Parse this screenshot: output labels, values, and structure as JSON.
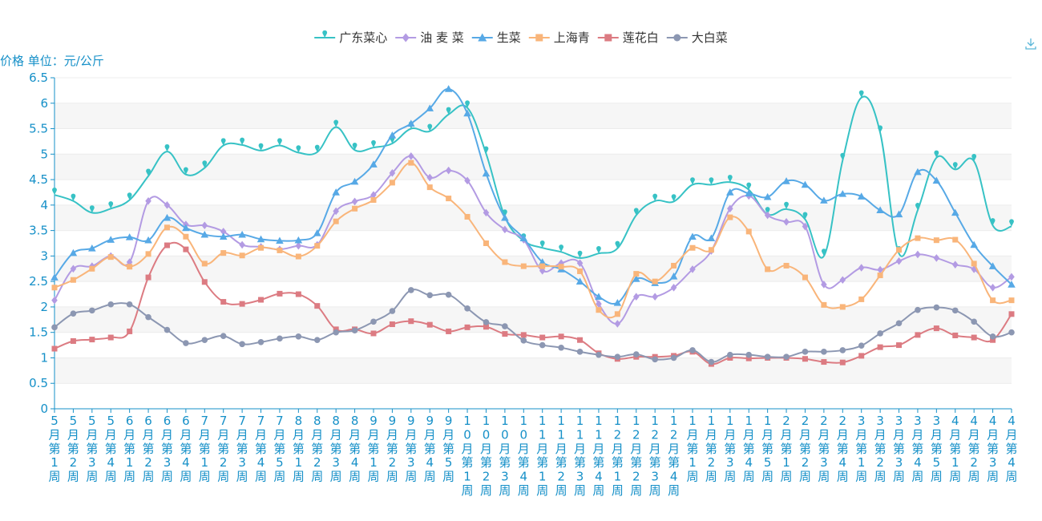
{
  "chart_data": {
    "type": "line",
    "ylabel": "价格 单位：元/公斤",
    "ylim": [
      0,
      6.5
    ],
    "yticks": [
      "0",
      "0.5",
      "1",
      "1.5",
      "2",
      "2.5",
      "3",
      "3.5",
      "4",
      "4.5",
      "5",
      "5.5",
      "6",
      "6.5"
    ],
    "grid": "horizontal bands",
    "legend_position": "top-center",
    "categories": [
      "5月第1周",
      "5月第2周",
      "5月第3周",
      "5月第4周",
      "6月第1周",
      "6月第2周",
      "6月第3周",
      "6月第4周",
      "7月第1周",
      "7月第2周",
      "7月第3周",
      "7月第4周",
      "7月第5周",
      "8月第1周",
      "8月第2周",
      "8月第3周",
      "8月第4周",
      "9月第1周",
      "9月第2周",
      "9月第3周",
      "9月第4周",
      "9月第5周",
      "10月第1周",
      "10月第2周",
      "10月第3周",
      "10月第4周",
      "11月第1周",
      "11月第2周",
      "11月第3周",
      "11月第4周",
      "12月第1周",
      "12月第2周",
      "12月第3周",
      "12月第4周",
      "1月第1周",
      "1月第2周",
      "1月第3周",
      "1月第4周",
      "1月第5周",
      "2月第1周",
      "2月第2周",
      "2月第3周",
      "2月第4周",
      "3月第1周",
      "3月第2周",
      "3月第3周",
      "3月第4周",
      "3月第5周",
      "4月第1周",
      "4月第2周",
      "4月第3周",
      "4月第4周"
    ],
    "series": [
      {
        "name": "广东菜心",
        "color": "#37c2c5",
        "symbol": "pin",
        "values": [
          4.2,
          4.08,
          3.85,
          3.93,
          4.1,
          4.57,
          5.05,
          4.6,
          4.73,
          5.17,
          5.18,
          5.07,
          5.17,
          5.03,
          5.04,
          5.53,
          5.08,
          5.13,
          5.21,
          5.5,
          5.45,
          5.78,
          5.91,
          5.01,
          3.77,
          3.3,
          3.16,
          3.08,
          2.96,
          3.05,
          3.15,
          3.8,
          4.08,
          4.07,
          4.4,
          4.4,
          4.45,
          4.3,
          3.82,
          3.92,
          3.72,
          3.0,
          4.88,
          6.11,
          5.42,
          3.05,
          3.9,
          4.93,
          4.7,
          4.86,
          3.6,
          3.58
        ]
      },
      {
        "name": "油 麦 菜",
        "color": "#b39be3",
        "symbol": "diamond",
        "values": [
          2.13,
          2.75,
          2.8,
          3.0,
          2.88,
          4.08,
          4.0,
          3.62,
          3.6,
          3.48,
          3.22,
          3.18,
          3.13,
          3.2,
          3.22,
          3.88,
          4.07,
          4.2,
          4.63,
          4.96,
          4.54,
          4.68,
          4.48,
          3.85,
          3.52,
          3.32,
          2.71,
          2.86,
          2.86,
          2.06,
          1.67,
          2.2,
          2.2,
          2.38,
          2.74,
          3.1,
          3.93,
          4.18,
          3.8,
          3.67,
          3.58,
          2.44,
          2.53,
          2.77,
          2.73,
          2.9,
          3.03,
          2.96,
          2.83,
          2.74,
          2.38,
          2.59
        ]
      },
      {
        "name": "生菜",
        "color": "#57a9e6",
        "symbol": "triangle",
        "values": [
          2.58,
          3.06,
          3.15,
          3.32,
          3.37,
          3.31,
          3.75,
          3.55,
          3.42,
          3.38,
          3.42,
          3.33,
          3.3,
          3.31,
          3.45,
          4.25,
          4.46,
          4.8,
          5.37,
          5.6,
          5.9,
          6.28,
          5.8,
          4.62,
          3.75,
          3.35,
          2.88,
          2.74,
          2.5,
          2.2,
          2.08,
          2.55,
          2.47,
          2.6,
          3.38,
          3.35,
          4.25,
          4.23,
          4.16,
          4.47,
          4.4,
          4.09,
          4.22,
          4.17,
          3.9,
          3.82,
          4.65,
          4.48,
          3.85,
          3.22,
          2.8,
          2.44
        ]
      },
      {
        "name": "上海青",
        "color": "#f9b57a",
        "symbol": "rect",
        "values": [
          2.38,
          2.53,
          2.75,
          2.98,
          2.79,
          3.04,
          3.56,
          3.38,
          2.85,
          3.06,
          3.01,
          3.16,
          3.11,
          2.99,
          3.2,
          3.68,
          3.93,
          4.1,
          4.44,
          4.83,
          4.35,
          4.13,
          3.77,
          3.25,
          2.88,
          2.8,
          2.8,
          2.79,
          2.7,
          1.94,
          1.86,
          2.65,
          2.5,
          2.81,
          3.16,
          3.12,
          3.76,
          3.48,
          2.74,
          2.81,
          2.58,
          2.04,
          2.0,
          2.15,
          2.62,
          3.12,
          3.35,
          3.31,
          3.32,
          2.85,
          2.13,
          2.13
        ]
      },
      {
        "name": "莲花白",
        "color": "#dc7b82",
        "symbol": "rect",
        "values": [
          1.18,
          1.33,
          1.36,
          1.4,
          1.52,
          2.58,
          3.21,
          3.13,
          2.49,
          2.1,
          2.06,
          2.14,
          2.26,
          2.25,
          2.02,
          1.56,
          1.56,
          1.48,
          1.66,
          1.72,
          1.65,
          1.52,
          1.6,
          1.61,
          1.47,
          1.45,
          1.4,
          1.42,
          1.35,
          1.09,
          0.98,
          1.02,
          1.02,
          1.04,
          1.12,
          0.88,
          1.0,
          0.99,
          1.0,
          1.0,
          0.98,
          0.92,
          0.91,
          1.04,
          1.21,
          1.25,
          1.45,
          1.58,
          1.44,
          1.4,
          1.35,
          1.86
        ]
      },
      {
        "name": "大白菜",
        "color": "#8c97b2",
        "symbol": "circle",
        "values": [
          1.6,
          1.87,
          1.93,
          2.05,
          2.05,
          1.8,
          1.55,
          1.29,
          1.35,
          1.43,
          1.27,
          1.31,
          1.38,
          1.42,
          1.35,
          1.5,
          1.54,
          1.71,
          1.92,
          2.33,
          2.23,
          2.24,
          1.97,
          1.7,
          1.62,
          1.34,
          1.25,
          1.2,
          1.12,
          1.06,
          1.02,
          1.07,
          0.97,
          1.0,
          1.15,
          0.92,
          1.06,
          1.06,
          1.02,
          1.02,
          1.12,
          1.12,
          1.15,
          1.24,
          1.48,
          1.68,
          1.94,
          1.99,
          1.93,
          1.71,
          1.42,
          1.5
        ]
      }
    ]
  }
}
